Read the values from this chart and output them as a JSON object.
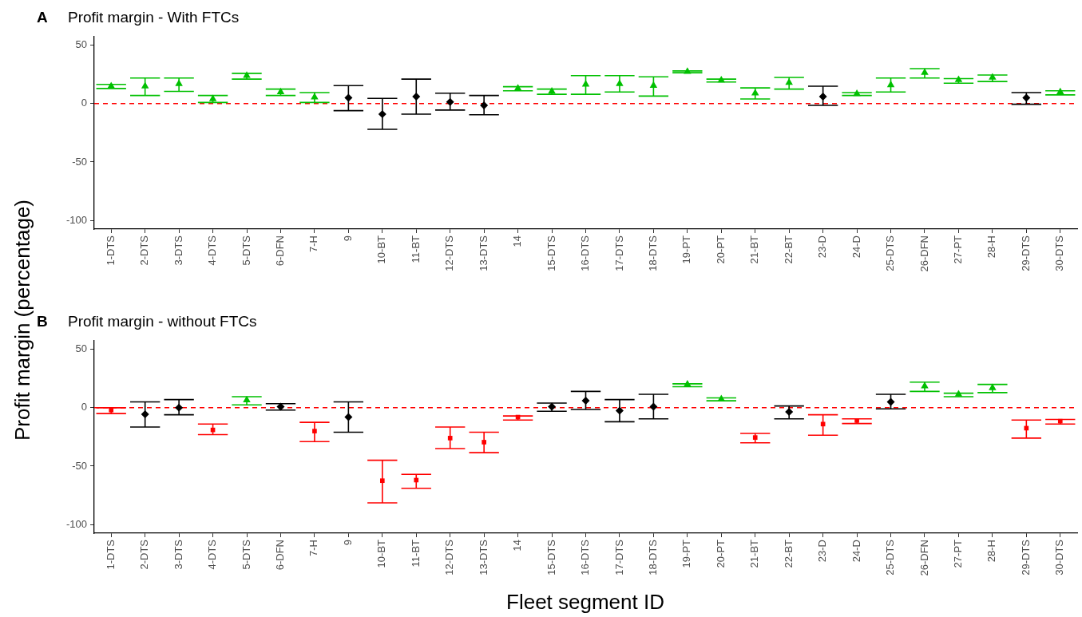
{
  "chart_data": [
    {
      "type": "scatter",
      "title": "Profit margin - With FTCs",
      "annotations": [
        "A"
      ],
      "ylabel": "Profit margin (percentage)",
      "categories": [
        "1-DTS",
        "2-DTS",
        "3-DTS",
        "4-DTS",
        "5-DTS",
        "6-DFN",
        "7-H",
        "9",
        "10-BT",
        "11-BT",
        "12-DTS",
        "13-DTS",
        "14",
        "15-DTS",
        "16-DTS",
        "17-DTS",
        "18-DTS",
        "19-PT",
        "20-PT",
        "21-BT",
        "22-BT",
        "23-D",
        "24-D",
        "25-DTS",
        "26-DFN",
        "27-PT",
        "28-H",
        "29-DTS",
        "30-DTS"
      ],
      "series": [
        {
          "color": "#00c000",
          "marker": "triangle",
          "values": [
            15,
            15,
            17,
            4,
            24,
            10,
            5.5,
            null,
            null,
            null,
            null,
            null,
            13,
            10.5,
            16.5,
            17,
            15.5,
            27.5,
            20,
            9,
            18,
            null,
            8.5,
            16,
            26.5,
            20.5,
            22.5,
            null,
            10
          ],
          "errors": [
            [
              13,
              16.5
            ],
            [
              7,
              22
            ],
            [
              10.5,
              22
            ],
            [
              1,
              7
            ],
            [
              21,
              26
            ],
            [
              7,
              12.5
            ],
            [
              1,
              9.5
            ],
            null,
            null,
            null,
            null,
            null,
            [
              11,
              14.5
            ],
            [
              8,
              12.5
            ],
            [
              8,
              24
            ],
            [
              10,
              24
            ],
            [
              6.5,
              23
            ],
            [
              26.5,
              28
            ],
            [
              18.5,
              21
            ],
            [
              4,
              13.5
            ],
            [
              12.5,
              22.5
            ],
            null,
            [
              7,
              9.5
            ],
            [
              10,
              22
            ],
            [
              22,
              30
            ],
            [
              17.5,
              21.5
            ],
            [
              19,
              24.5
            ],
            null,
            [
              7.5,
              11
            ]
          ]
        },
        {
          "color": "#000000",
          "marker": "diamond",
          "values": [
            null,
            null,
            null,
            null,
            null,
            null,
            null,
            5,
            -9,
            6,
            1.5,
            -1.5,
            null,
            null,
            null,
            null,
            null,
            null,
            null,
            null,
            null,
            6,
            null,
            null,
            null,
            null,
            null,
            5,
            null
          ],
          "errors": [
            null,
            null,
            null,
            null,
            null,
            null,
            null,
            [
              -6,
              15.5
            ],
            [
              -22,
              4.5
            ],
            [
              -9,
              21
            ],
            [
              -5.5,
              9
            ],
            [
              -9.5,
              7
            ],
            null,
            null,
            null,
            null,
            null,
            null,
            null,
            null,
            null,
            [
              -1.5,
              15
            ],
            null,
            null,
            null,
            null,
            null,
            [
              -0.5,
              9.5
            ],
            null
          ]
        }
      ],
      "ylim": [
        -107.5,
        57.5
      ],
      "yticks": [
        -100,
        -50,
        0,
        50
      ],
      "ref_lines": [
        {
          "axis": "y",
          "value": 0,
          "color": "#ff0000",
          "line_style": "dashed"
        }
      ]
    },
    {
      "type": "scatter",
      "title": "Profit margin - without FTCs",
      "annotations": [
        "B"
      ],
      "xlabel": "Fleet segment ID",
      "categories": [
        "1-DTS",
        "2-DTS",
        "3-DTS",
        "4-DTS",
        "5-DTS",
        "6-DFN",
        "7-H",
        "9",
        "10-BT",
        "11-BT",
        "12-DTS",
        "13-DTS",
        "14",
        "15-DTS",
        "16-DTS",
        "17-DTS",
        "18-DTS",
        "19-PT",
        "20-PT",
        "21-BT",
        "22-BT",
        "23-D",
        "24-D",
        "25-DTS",
        "26-DFN",
        "27-PT",
        "28-H",
        "29-DTS",
        "30-DTS"
      ],
      "series": [
        {
          "color": "#00c000",
          "marker": "triangle",
          "values": [
            null,
            null,
            null,
            null,
            6.5,
            null,
            null,
            null,
            null,
            null,
            null,
            null,
            null,
            null,
            null,
            null,
            null,
            20,
            7.5,
            null,
            null,
            null,
            null,
            null,
            18.5,
            11.5,
            17,
            null,
            null
          ],
          "errors": [
            null,
            null,
            null,
            null,
            [
              2.5,
              9.5
            ],
            null,
            null,
            null,
            null,
            null,
            null,
            null,
            null,
            null,
            null,
            null,
            null,
            [
              18,
              20.5
            ],
            [
              6,
              8.5
            ],
            null,
            null,
            null,
            null,
            null,
            [
              14,
              22
            ],
            [
              9.5,
              12.5
            ],
            [
              13,
              20
            ],
            null,
            null
          ]
        },
        {
          "color": "#000000",
          "marker": "diamond",
          "values": [
            null,
            -5.5,
            0,
            null,
            null,
            1,
            null,
            -8,
            null,
            null,
            null,
            null,
            null,
            1,
            6,
            -2.5,
            1,
            null,
            null,
            null,
            -3.5,
            null,
            null,
            5,
            null,
            null,
            null,
            null,
            null
          ],
          "errors": [
            null,
            [
              -16.5,
              5
            ],
            [
              -6,
              7
            ],
            null,
            null,
            [
              -2,
              3.5
            ],
            null,
            [
              -21,
              5
            ],
            null,
            null,
            null,
            null,
            null,
            [
              -3,
              4
            ],
            [
              -1.5,
              14
            ],
            [
              -12,
              7
            ],
            [
              -9.5,
              11.5
            ],
            null,
            null,
            null,
            [
              -9.5,
              1.5
            ],
            null,
            null,
            [
              -1,
              11.5
            ],
            null,
            null,
            null,
            null,
            null
          ]
        },
        {
          "color": "#ff0000",
          "marker": "square",
          "values": [
            -2,
            null,
            null,
            -19,
            null,
            null,
            -20,
            null,
            -62.5,
            -62,
            -26,
            -29.5,
            -8,
            null,
            null,
            null,
            null,
            null,
            null,
            -25.5,
            null,
            -14,
            -11,
            null,
            null,
            null,
            null,
            -17.5,
            -11.5
          ],
          "errors": [
            [
              -5,
              0
            ],
            null,
            null,
            [
              -23,
              -14
            ],
            null,
            null,
            [
              -29,
              -12.5
            ],
            null,
            [
              -81.5,
              -45
            ],
            [
              -69,
              -57
            ],
            [
              -35,
              -16.5
            ],
            [
              -38.5,
              -21
            ],
            [
              -10.5,
              -7
            ],
            null,
            null,
            null,
            null,
            null,
            null,
            [
              -30,
              -22
            ],
            null,
            [
              -23.5,
              -6
            ],
            [
              -13.5,
              -9.5
            ],
            null,
            null,
            null,
            null,
            [
              -26,
              -10.5
            ],
            [
              -14,
              -10
            ]
          ]
        }
      ],
      "ylim": [
        -107.5,
        57.5
      ],
      "yticks": [
        -100,
        -50,
        0,
        50
      ],
      "ref_lines": [
        {
          "axis": "y",
          "value": 0,
          "color": "#ff0000",
          "line_style": "dashed"
        }
      ]
    }
  ]
}
